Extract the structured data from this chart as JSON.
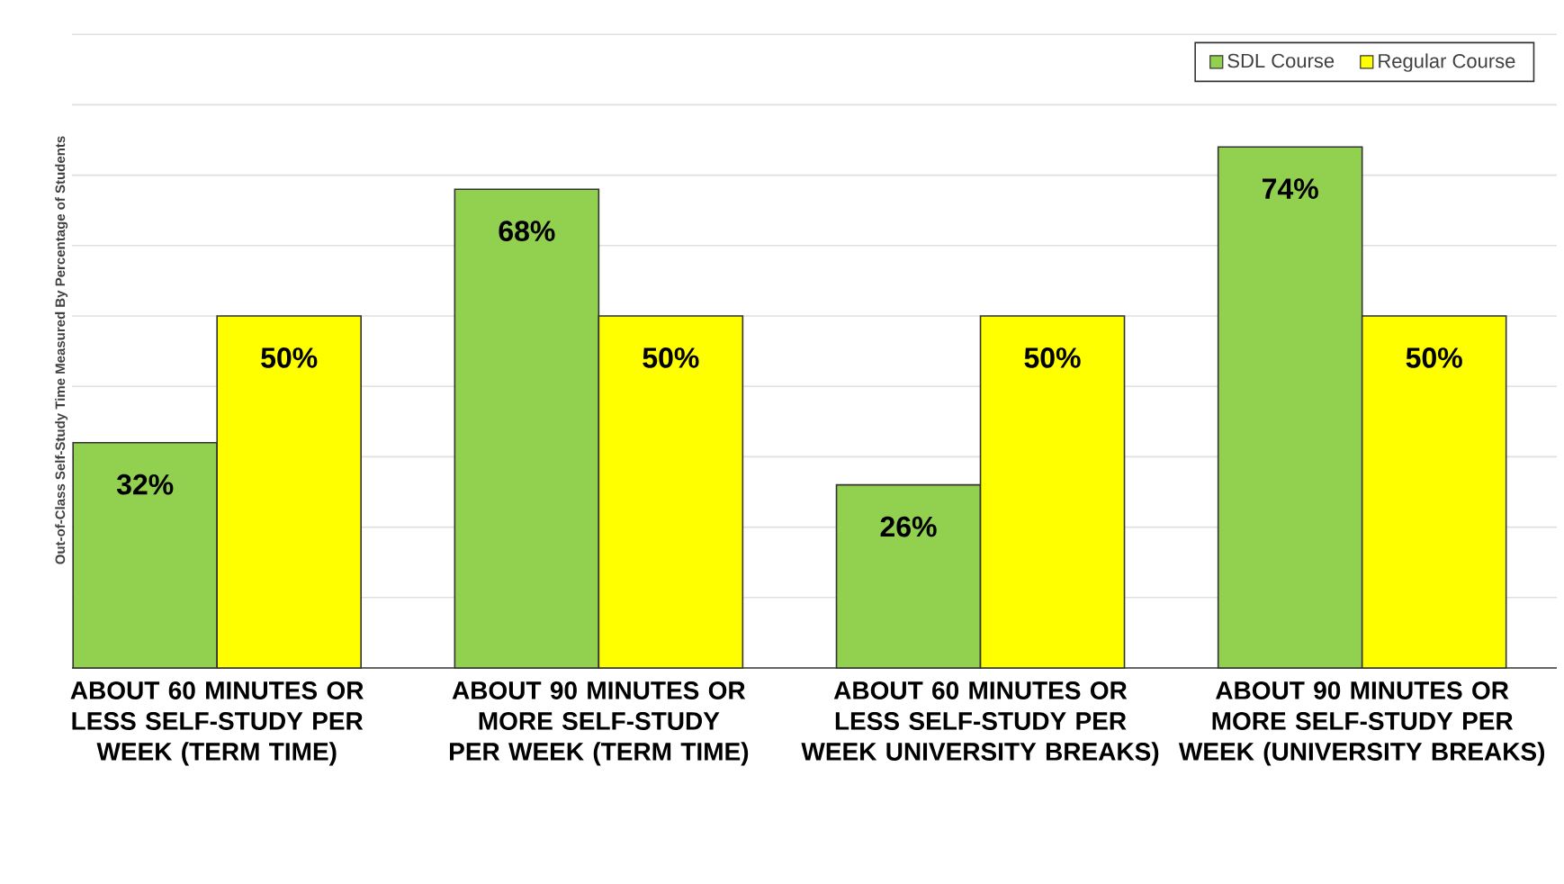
{
  "chart_data": {
    "type": "bar",
    "ylabel": "Out-of-Class Self-Study Time Measured By Percentage of Students",
    "categories": [
      "ABOUT 60 MINUTES OR LESS SELF-STUDY PER WEEK (TERM TIME)",
      "ABOUT 90 MINUTES OR MORE SELF-STUDY PER WEEK (TERM TIME)",
      "ABOUT 60 MINUTES OR LESS SELF-STUDY PER WEEK UNIVERSITY BREAKS)",
      "ABOUT 90 MINUTES OR MORE SELF-STUDY PER WEEK (UNIVERSITY BREAKS)"
    ],
    "series": [
      {
        "name": "SDL Course",
        "color": "#92d050",
        "values": [
          32,
          68,
          26,
          74
        ],
        "value_labels": [
          "32%",
          "68%",
          "26%",
          "74%"
        ]
      },
      {
        "name": "Regular Course",
        "color": "#ffff00",
        "values": [
          50,
          50,
          50,
          50
        ],
        "value_labels": [
          "50%",
          "50%",
          "50%",
          "50%"
        ]
      }
    ],
    "tick_labels": "x",
    "grid": "y",
    "legend": "top right"
  }
}
